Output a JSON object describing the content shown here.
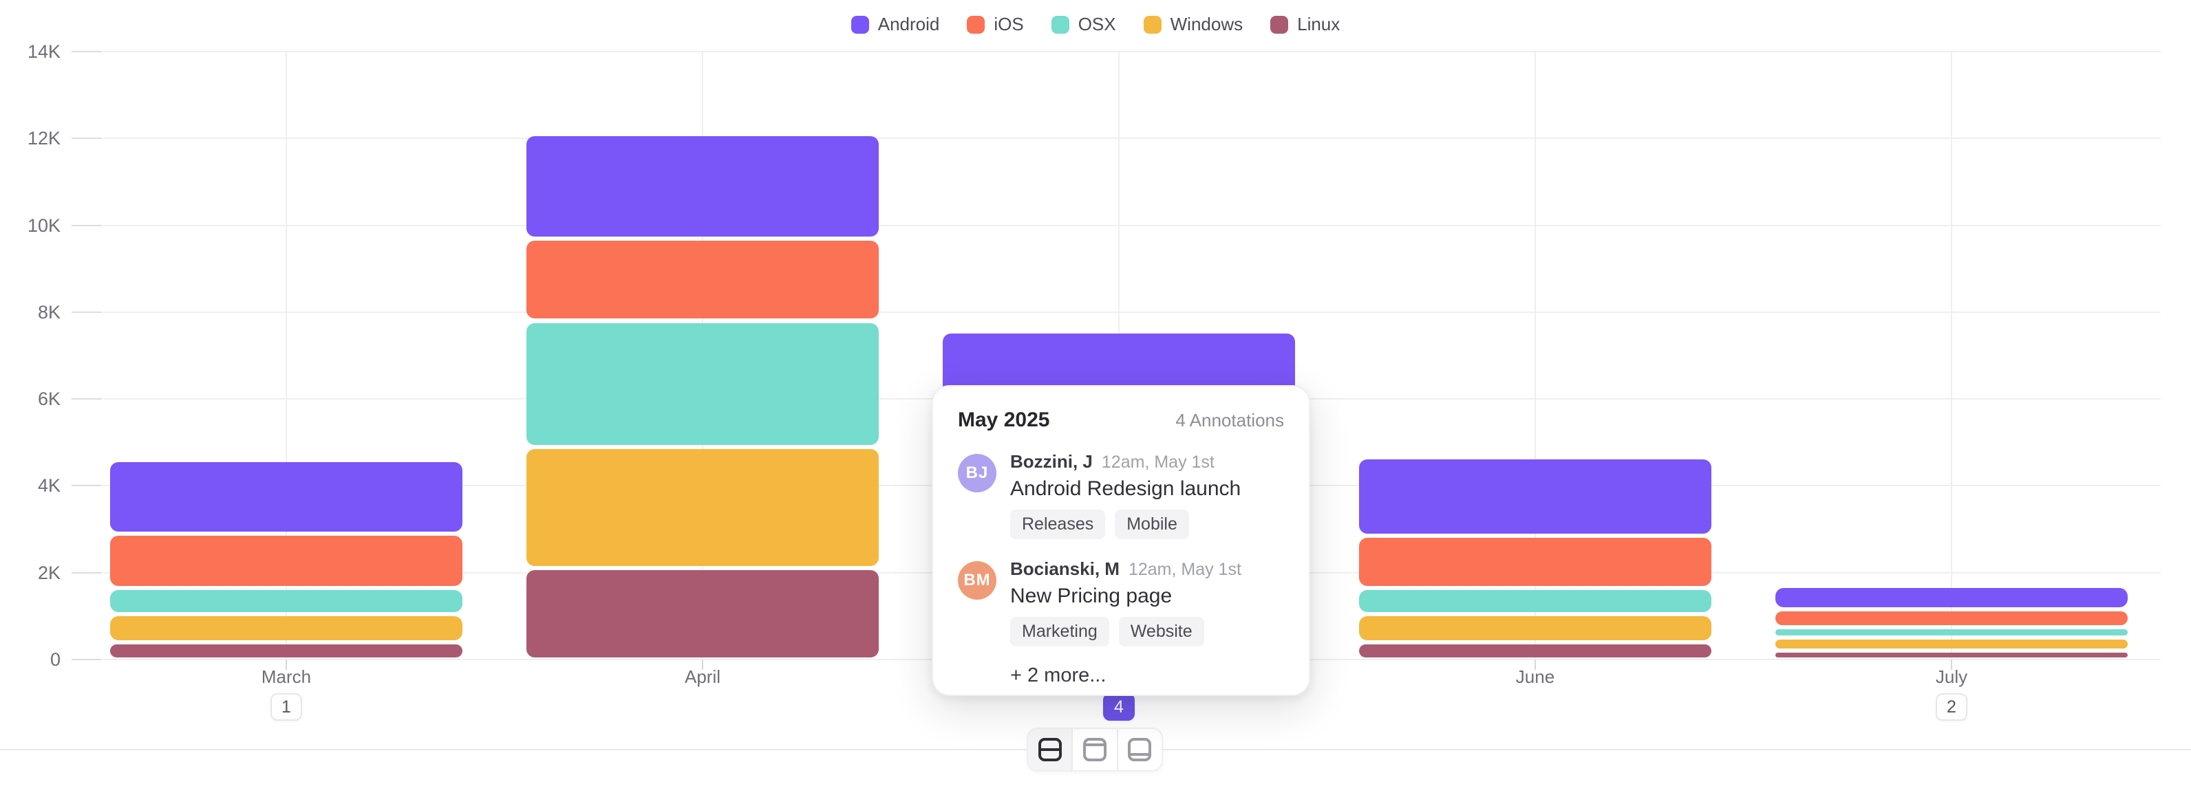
{
  "legend": {
    "items": [
      {
        "label": "Android",
        "color": "#7A55F8"
      },
      {
        "label": "iOS",
        "color": "#FB7254"
      },
      {
        "label": "OSX",
        "color": "#75DCCE"
      },
      {
        "label": "Windows",
        "color": "#F4B840"
      },
      {
        "label": "Linux",
        "color": "#AA5A70"
      }
    ]
  },
  "chart_data": {
    "type": "bar",
    "stacked": true,
    "title": "",
    "categories": [
      "March",
      "April",
      "May",
      "June",
      "July"
    ],
    "series": [
      {
        "name": "Android",
        "color": "#7A55F8",
        "values": [
          1700,
          2400,
          2550,
          1800,
          550
        ]
      },
      {
        "name": "iOS",
        "color": "#FB7254",
        "values": [
          1250,
          1900,
          1850,
          1200,
          400
        ]
      },
      {
        "name": "OSX",
        "color": "#75DCCE",
        "values": [
          600,
          2900,
          1250,
          600,
          250
        ]
      },
      {
        "name": "Windows",
        "color": "#F4B840",
        "values": [
          650,
          2800,
          1200,
          650,
          300
        ]
      },
      {
        "name": "Linux",
        "color": "#AA5A70",
        "values": [
          400,
          2100,
          700,
          400,
          200
        ]
      }
    ],
    "xlabel": "",
    "ylabel": "",
    "yticks": [
      "0",
      "2K",
      "4K",
      "6K",
      "8K",
      "10K",
      "12K",
      "14K"
    ],
    "ylim": [
      0,
      14000
    ],
    "grid": "light gray horizontal lines each 2K plus vertical line at each month center",
    "legend_position": "top-center"
  },
  "x_axis": {
    "labels": [
      "March",
      "April",
      "May",
      "June",
      "July"
    ],
    "badges": [
      {
        "category": "March",
        "count": "1",
        "active": false
      },
      {
        "category": "May",
        "count": "4",
        "active": true
      },
      {
        "category": "July",
        "count": "2",
        "active": false
      }
    ]
  },
  "tooltip": {
    "title": "May 2025",
    "count_label": "4 Annotations",
    "annotations": [
      {
        "initials": "BJ",
        "avatar_color": "#AFA2F0",
        "author": "Bozzini, J",
        "time": "12am, May 1st",
        "title": "Android Redesign launch",
        "tags": [
          "Releases",
          "Mobile"
        ]
      },
      {
        "initials": "BM",
        "avatar_color": "#F09B77",
        "author": "Bocianski, M",
        "time": "12am, May 1st",
        "title": "New Pricing page",
        "tags": [
          "Marketing",
          "Website"
        ]
      }
    ],
    "more_label": "+ 2 more..."
  },
  "toolbar": {
    "buttons": [
      {
        "id": "layout-split-middle",
        "icon": "square-with-middle-line",
        "active": true
      },
      {
        "id": "layout-split-top",
        "icon": "square-with-top-line",
        "active": false
      },
      {
        "id": "layout-split-bottom",
        "icon": "square-with-bottom-line",
        "active": false
      }
    ]
  },
  "colors": {
    "badge_active_bg": "#6C51E6",
    "gridline": "#EFEFF1",
    "axis_text": "#6E6E78"
  }
}
